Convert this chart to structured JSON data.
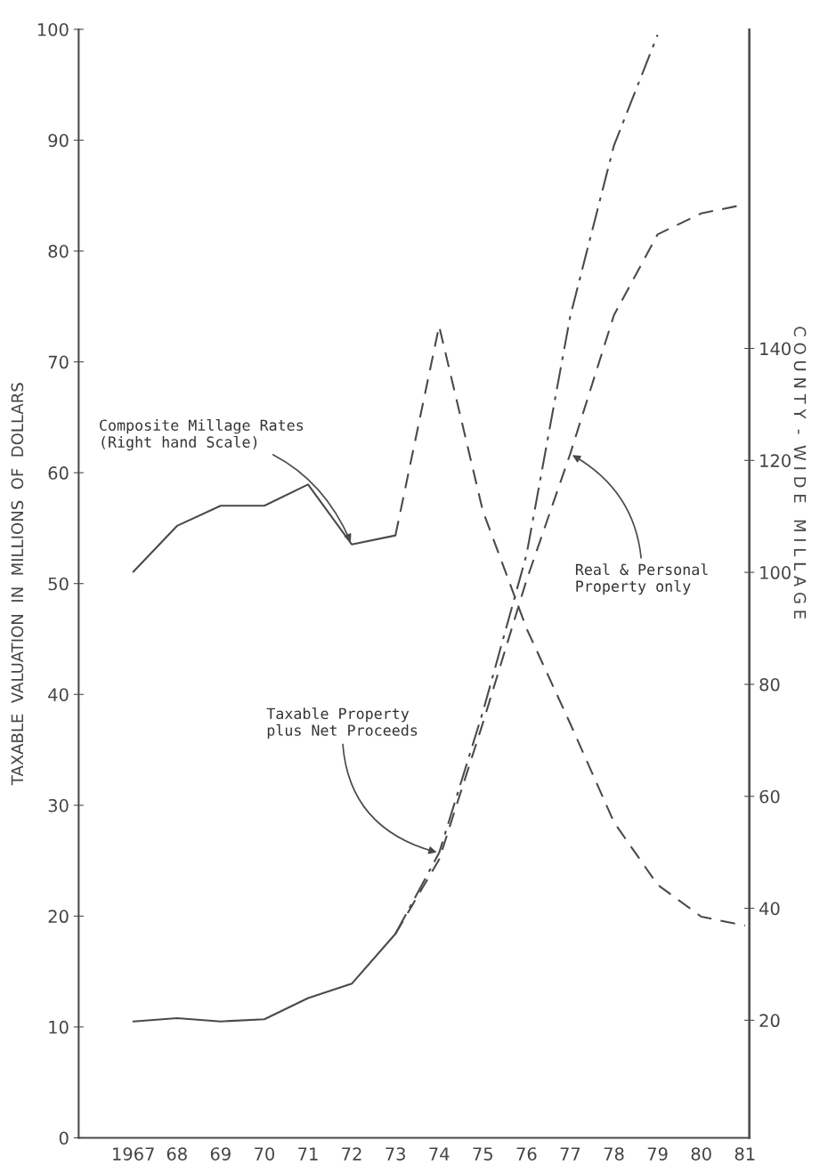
{
  "chart_data": {
    "type": "line",
    "xlabel": null,
    "ylabel": "TAXABLE  VALUATION  IN  MILLIONS  OF  DOLLARS",
    "y2label": "C O U N T Y  -  W I D E   M I L L A G E",
    "xlim": [
      1965.75,
      1981.1
    ],
    "xticks": [
      {
        "value": 1967,
        "label": "1967"
      },
      {
        "value": 1968,
        "label": "68"
      },
      {
        "value": 1969,
        "label": "69"
      },
      {
        "value": 1970,
        "label": "70"
      },
      {
        "value": 1971,
        "label": "71"
      },
      {
        "value": 1972,
        "label": "72"
      },
      {
        "value": 1973,
        "label": "73"
      },
      {
        "value": 1974,
        "label": "74"
      },
      {
        "value": 1975,
        "label": "75"
      },
      {
        "value": 1976,
        "label": "76"
      },
      {
        "value": 1977,
        "label": "77"
      },
      {
        "value": 1978,
        "label": "78"
      },
      {
        "value": 1979,
        "label": "79"
      },
      {
        "value": 1980,
        "label": "80"
      },
      {
        "value": 1981,
        "label": "81"
      }
    ],
    "ylim": [
      0,
      100
    ],
    "yticks": [
      0,
      10,
      20,
      30,
      40,
      50,
      60,
      70,
      80,
      90,
      100
    ],
    "y2lim": [
      -1,
      197
    ],
    "y2ticks": [
      20,
      40,
      60,
      80,
      100,
      120,
      140
    ],
    "grid": false,
    "legend": false,
    "marker": "none",
    "series": [
      {
        "name": "Composite Millage Rates\n(Right hand Scale)",
        "color": "#4a4a4a",
        "axis": "y2",
        "line_style": "solid",
        "x": [
          1967,
          1968,
          1969,
          1970,
          1971,
          1972,
          1973
        ],
        "values": [
          100.1,
          108.3,
          111.9,
          111.9,
          115.7,
          105.0,
          106.6
        ]
      },
      {
        "color": "#4a4a4a",
        "axis": "y2",
        "line_style": "dashed",
        "x": [
          1973,
          1974,
          1975,
          1976,
          1977,
          1978,
          1979,
          1980,
          1981
        ],
        "values": [
          106.6,
          144,
          111,
          90,
          73,
          55.4,
          44.2,
          38.5,
          36.9
        ]
      },
      {
        "color": "#4a4a4a",
        "line_style": "solid",
        "x": [
          1967,
          1968,
          1969,
          1970,
          1971,
          1972,
          1973
        ],
        "values": [
          10.5,
          10.8,
          10.5,
          10.7,
          12.6,
          13.9,
          18.4
        ]
      },
      {
        "name": "Taxable Property\nplus Net Proceeds",
        "color": "#4a4a4a",
        "line_style": "dashdot",
        "x": [
          1973,
          1974,
          1975,
          1976,
          1977,
          1978,
          1979
        ],
        "values": [
          18.4,
          25.7,
          38.4,
          52.6,
          74.1,
          89.5,
          99.5
        ]
      },
      {
        "name": "Real & Personal\nProperty only",
        "color": "#4a4a4a",
        "line_style": "dashed",
        "x": [
          1973,
          1974,
          1975,
          1976,
          1977,
          1978,
          1979,
          1980,
          1981
        ],
        "values": [
          18.4,
          25.1,
          37.4,
          50.3,
          61.7,
          74.2,
          81.5,
          83.4,
          84.2
        ]
      }
    ]
  }
}
